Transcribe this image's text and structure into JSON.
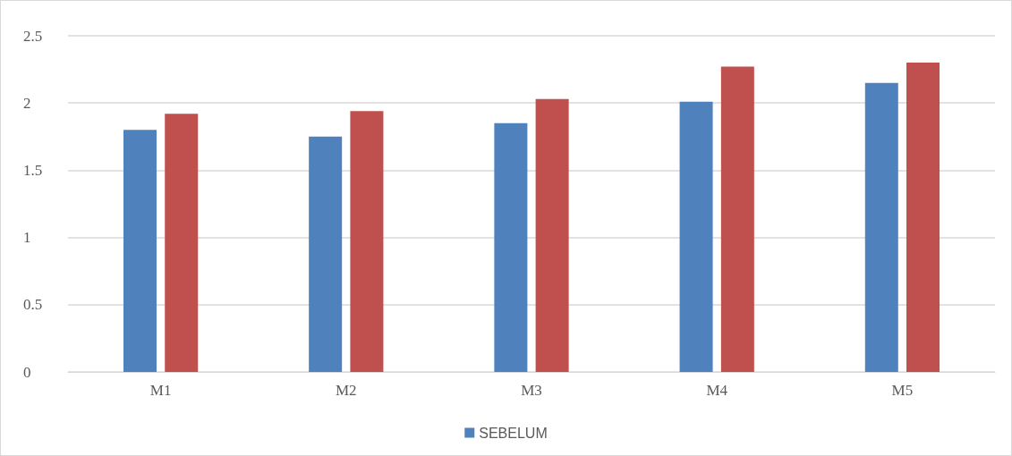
{
  "chart_data": {
    "type": "bar",
    "categories": [
      "M1",
      "M2",
      "M3",
      "M4",
      "M5"
    ],
    "series": [
      {
        "name": "SEBELUM",
        "color": "#4f81bd",
        "values": [
          1.8,
          1.75,
          1.85,
          2.01,
          2.15
        ]
      },
      {
        "color": "#c0504d",
        "values": [
          1.92,
          1.94,
          2.03,
          2.27,
          2.3
        ]
      }
    ],
    "ylim": [
      0,
      2.5
    ],
    "yticks": [
      0,
      0.5,
      1,
      1.5,
      2,
      2.5
    ],
    "grid": "y",
    "legend": "bottom"
  }
}
